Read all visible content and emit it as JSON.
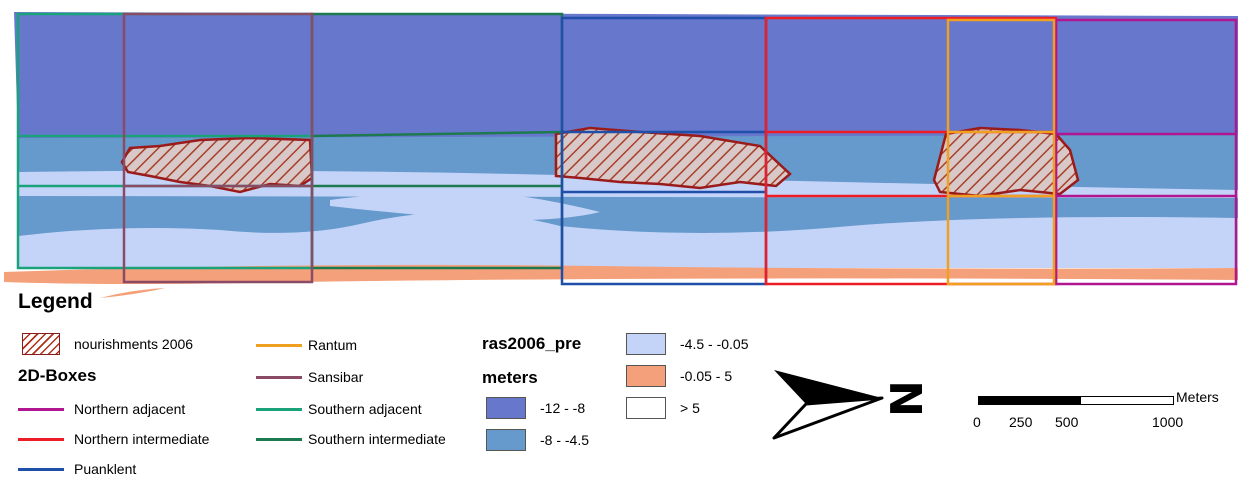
{
  "legend": {
    "title": "Legend",
    "nourishments_label": "nourishments 2006",
    "boxes_heading": "2D-Boxes",
    "boxes": [
      {
        "name": "Northern adjacent",
        "color": "#b0168f"
      },
      {
        "name": "Northern intermediate",
        "color": "#ee1c24"
      },
      {
        "name": "Puanklent",
        "color": "#1f4fa8"
      },
      {
        "name": "Rantum",
        "color": "#f0a020"
      },
      {
        "name": "Sansibar",
        "color": "#8a4b67"
      },
      {
        "name": "Southern adjacent",
        "color": "#1aa37a"
      },
      {
        "name": "Southern intermediate",
        "color": "#1d7a4f"
      }
    ],
    "raster_heading": "ras2006_pre",
    "raster_unit": "meters",
    "depth_classes": [
      {
        "label": "-12 - -8",
        "color": "#6677cc"
      },
      {
        "label": "-8 - -4.5",
        "color": "#6699cc"
      },
      {
        "label": "-4.5 - -0.05",
        "color": "#c4d4f8"
      },
      {
        "label": "-0.05 - 5",
        "color": "#f4a07a"
      },
      {
        "label": "> 5",
        "color": "#ffffff"
      }
    ]
  },
  "north_arrow": {
    "label": "N",
    "icon": "north-arrow-icon"
  },
  "scale_bar": {
    "unit": "Meters",
    "ticks": [
      "0",
      "250",
      "500",
      "1000"
    ]
  }
}
